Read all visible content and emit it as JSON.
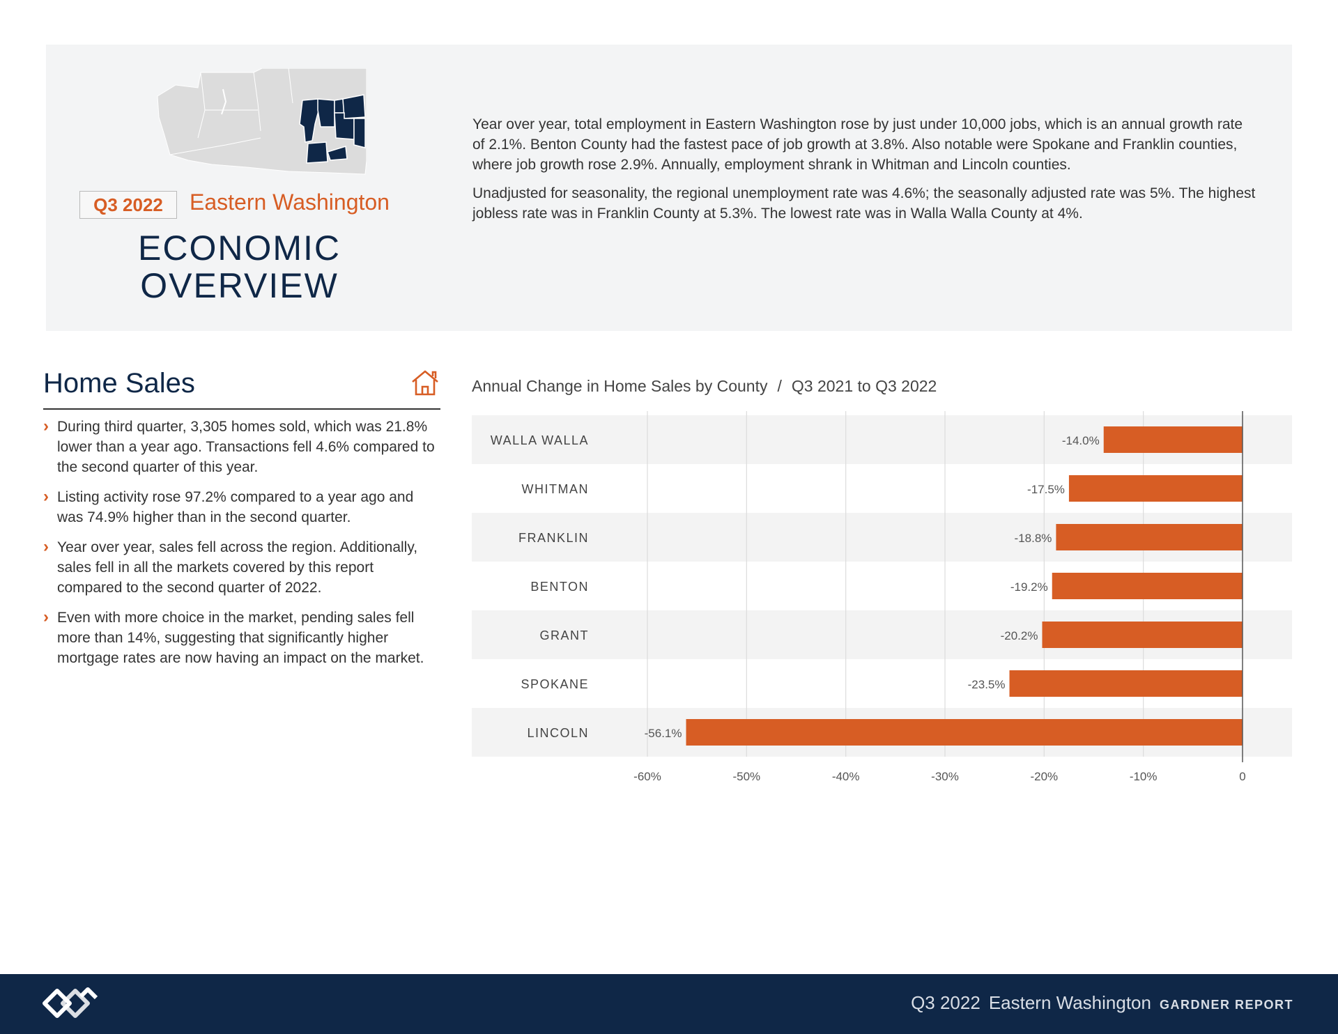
{
  "header": {
    "quarter_badge": "Q3 2022",
    "region": "Eastern Washington",
    "title_line1": "ECONOMIC",
    "title_line2": "OVERVIEW",
    "paragraph1": "Year over year, total employment in Eastern Washington rose by just under 10,000 jobs, which is an annual growth rate of 2.1%. Benton County had the fastest pace of job growth at 3.8%. Also notable were Spokane and Franklin counties, where job growth rose 2.9%. Annually, employment shrank in Whitman and Lincoln counties.",
    "paragraph2": "Unadjusted for seasonality, the regional unemployment rate was 4.6%; the seasonally adjusted rate was 5%. The highest jobless rate was in Franklin County at 5.3%. The lowest rate was in Walla Walla County at 4%."
  },
  "home_sales": {
    "title": "Home Sales",
    "bullets": [
      "During third quarter, 3,305 homes sold, which was 21.8% lower than a year ago. Transactions fell 4.6% compared to the second quarter of this year.",
      "Listing activity rose 97.2% compared to a year ago and was 74.9% higher than in the second quarter.",
      "Year over year, sales fell across the region. Additionally, sales fell in all the markets covered by this report compared to the second quarter of 2022.",
      "Even with more choice in the market, pending sales fell more than 14%, suggesting that significantly higher mortgage rates are now having an impact on the market."
    ]
  },
  "chart_data": {
    "type": "bar",
    "orientation": "horizontal",
    "title": "Annual Change in Home Sales by County",
    "subtitle": "Q3 2021 to Q3 2022",
    "separator": "/",
    "categories": [
      "WALLA WALLA",
      "WHITMAN",
      "FRANKLIN",
      "BENTON",
      "GRANT",
      "SPOKANE",
      "LINCOLN"
    ],
    "values": [
      -14.0,
      -17.5,
      -18.8,
      -19.2,
      -20.2,
      -23.5,
      -56.1
    ],
    "value_labels": [
      "-14.0%",
      "-17.5%",
      "-18.8%",
      "-19.2%",
      "-20.2%",
      "-23.5%",
      "-56.1%"
    ],
    "xlim": [
      -60,
      0
    ],
    "xticks": [
      -60,
      -50,
      -40,
      -30,
      -20,
      -10,
      0
    ],
    "xtick_labels": [
      "-60%",
      "-50%",
      "-40%",
      "-30%",
      "-20%",
      "-10%",
      "0"
    ],
    "bar_color": "#d75d24",
    "grid": true
  },
  "footer": {
    "quarter": "Q3 2022",
    "region": "Eastern Washington",
    "report": "GARDNER REPORT"
  },
  "colors": {
    "accent": "#d75d24",
    "navy": "#0f2747",
    "panel": "#f3f4f5"
  }
}
